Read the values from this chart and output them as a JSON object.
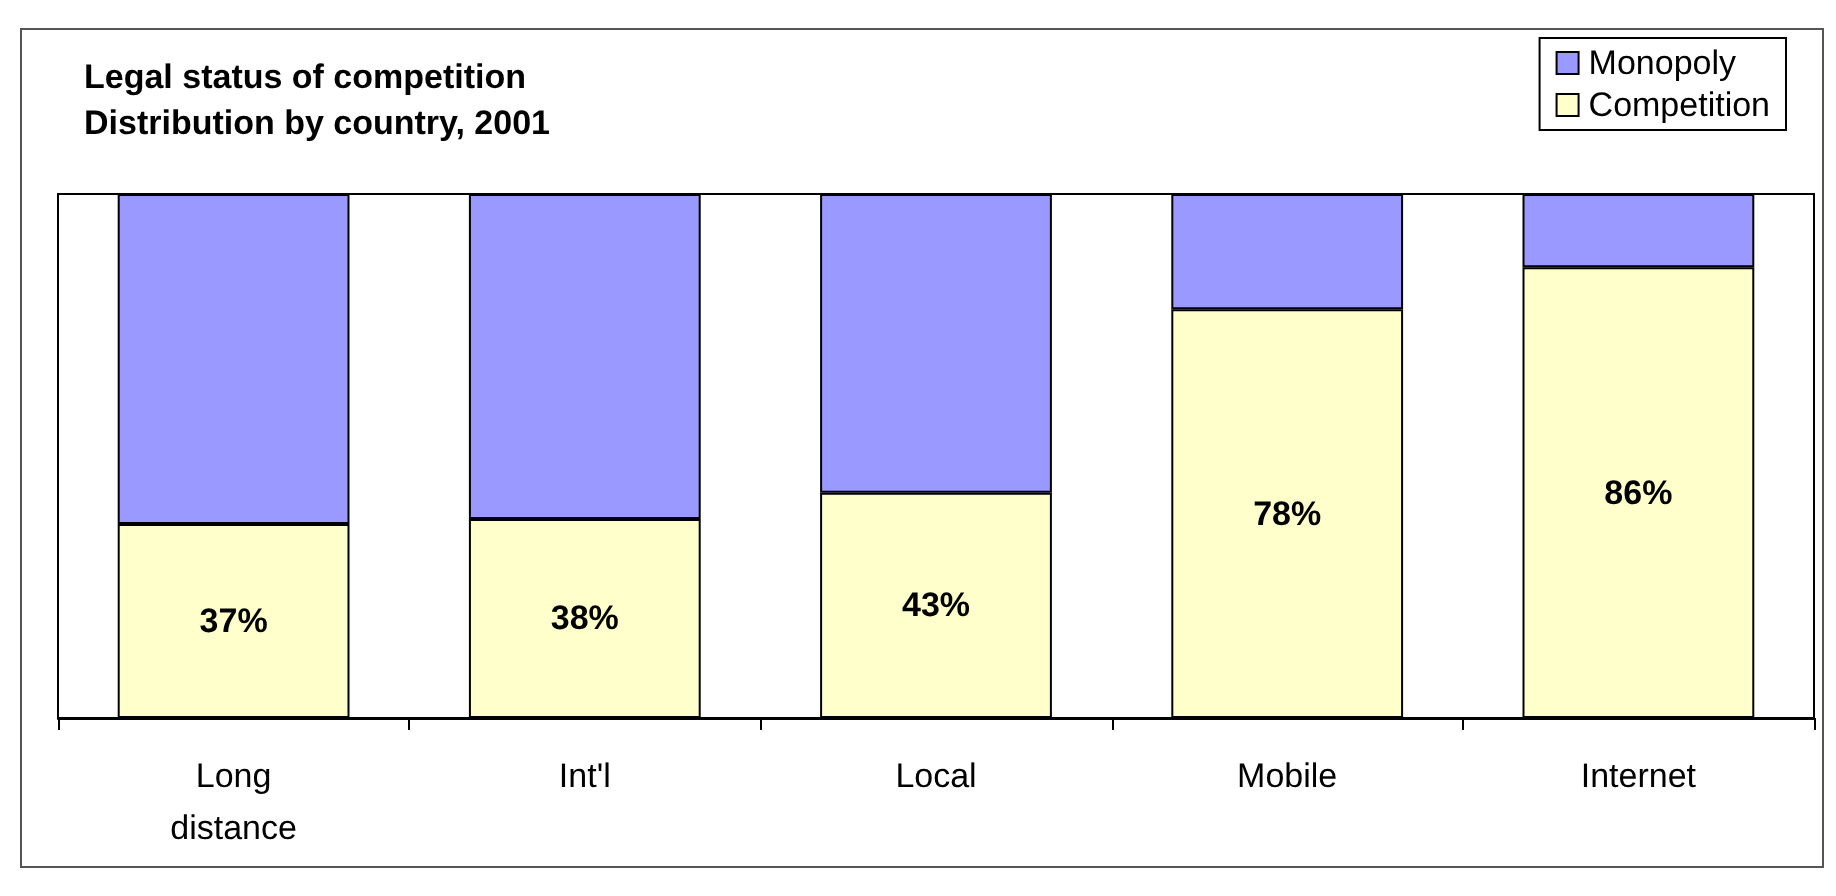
{
  "chart_data": {
    "type": "bar",
    "title": "Legal status of competition",
    "subtitle": "Distribution by country, 2001",
    "categories": [
      "Long\ndistance",
      "Int'l",
      "Local",
      "Mobile",
      "Internet"
    ],
    "stacked": true,
    "ylim": [
      0,
      100
    ],
    "tick_labels": "x",
    "grid": false,
    "legend": "top right",
    "series": [
      {
        "name": "Competition",
        "color": "#ffffcc",
        "values": [
          37,
          38,
          43,
          78,
          86
        ],
        "value_labels": [
          "37%",
          "38%",
          "43%",
          "78%",
          "86%"
        ]
      },
      {
        "name": "Monopoly",
        "color": "#9999ff",
        "values": [
          63,
          62,
          57,
          22,
          14
        ]
      }
    ]
  }
}
